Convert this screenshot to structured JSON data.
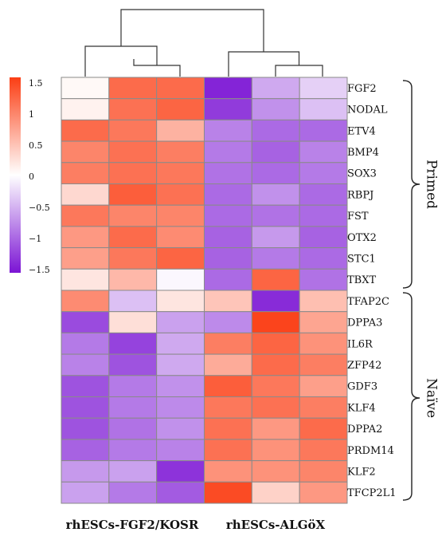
{
  "chart_data": {
    "type": "heatmap",
    "title": "",
    "colorscale": {
      "min": -1.5,
      "max": 1.5,
      "low_color": "#7B14D4",
      "mid_color": "#FFFFFF",
      "high_color": "#FB3E14",
      "tick_labels": [
        "1.5",
        "1",
        "0.5",
        "0",
        "−0.5",
        "−1",
        "−1.5"
      ],
      "ticks": [
        1.5,
        1,
        0.5,
        0,
        -0.5,
        -1,
        -1.5
      ]
    },
    "column_groups": [
      {
        "label": "rhESCs-FGF2/KOSR",
        "columns": 3
      },
      {
        "label": "rhESCs-ALGöX",
        "columns": 3
      }
    ],
    "row_groups": [
      {
        "label": "Primed",
        "from": 0,
        "to": 9
      },
      {
        "label": "Naïve",
        "from": 10,
        "to": 19
      }
    ],
    "rows": [
      "FGF2",
      "NODAL",
      "ETV4",
      "BMP4",
      "SOX3",
      "RBPJ",
      "FST",
      "OTX2",
      "STC1",
      "TBXT",
      "TFAP2C",
      "DPPA3",
      "IL6R",
      "ZFP42",
      "GDF3",
      "KLF4",
      "DPPA2",
      "PRDM14",
      "KLF2",
      "TFCP2L1"
    ],
    "values": [
      [
        0.05,
        1.15,
        1.15,
        -1.4,
        -0.55,
        -0.3
      ],
      [
        0.1,
        1.1,
        1.2,
        -1.25,
        -0.7,
        -0.4
      ],
      [
        1.15,
        1.05,
        0.6,
        -0.8,
        -0.95,
        -0.95
      ],
      [
        0.95,
        1.1,
        1.0,
        -0.85,
        -1.0,
        -0.8
      ],
      [
        1.0,
        1.1,
        1.05,
        -0.9,
        -0.95,
        -0.85
      ],
      [
        0.3,
        1.25,
        1.1,
        -0.95,
        -0.7,
        -0.95
      ],
      [
        1.05,
        0.95,
        0.95,
        -0.95,
        -0.9,
        -0.95
      ],
      [
        0.8,
        1.15,
        0.9,
        -1.0,
        -0.65,
        -1.0
      ],
      [
        0.75,
        1.05,
        1.2,
        -1.0,
        -0.85,
        -0.95
      ],
      [
        0.2,
        0.55,
        -0.05,
        -0.95,
        1.2,
        -0.9
      ],
      [
        0.9,
        -0.4,
        0.2,
        0.45,
        -1.35,
        0.5
      ],
      [
        -1.15,
        0.25,
        -0.6,
        -0.75,
        1.45,
        0.7
      ],
      [
        -0.85,
        -1.2,
        -0.55,
        1.0,
        1.2,
        0.85
      ],
      [
        -0.8,
        -1.1,
        -0.55,
        0.65,
        1.15,
        1.0
      ],
      [
        -1.1,
        -0.85,
        -0.7,
        1.25,
        1.05,
        0.75
      ],
      [
        -1.1,
        -0.85,
        -0.75,
        1.05,
        1.1,
        1.0
      ],
      [
        -1.1,
        -0.9,
        -0.7,
        1.1,
        0.8,
        1.15
      ],
      [
        -1.0,
        -0.85,
        -0.8,
        1.1,
        0.85,
        1.05
      ],
      [
        -0.65,
        -0.6,
        -1.3,
        0.85,
        0.85,
        0.95
      ],
      [
        -0.6,
        -0.85,
        -1.05,
        1.4,
        0.35,
        0.8
      ]
    ]
  }
}
